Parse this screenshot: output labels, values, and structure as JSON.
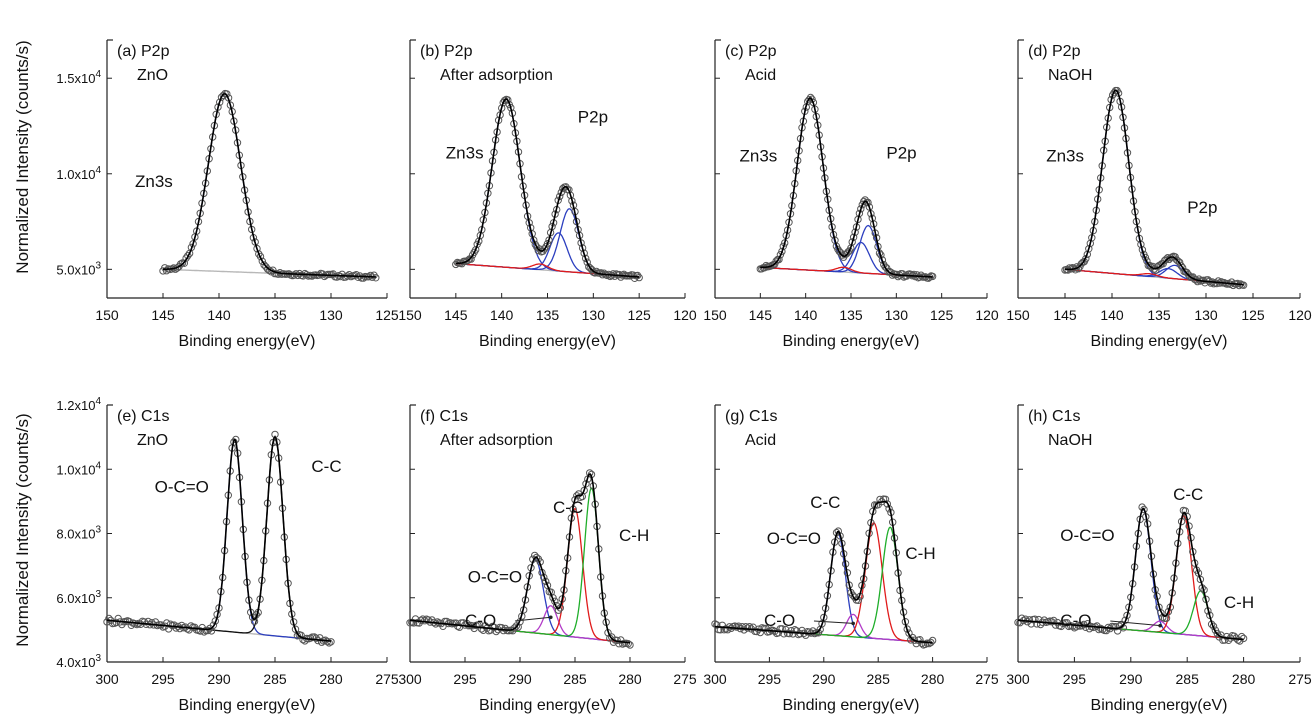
{
  "figure": {
    "ylabel": "Normalized Intensity (counts/s)",
    "xlabel": "Binding energy(eV)",
    "colors": {
      "envelope": "#000000",
      "points": "#555555",
      "background": "#b8b8b8",
      "blue": "#2c3fbf",
      "red": "#e01b1b",
      "green": "#1fae2a",
      "purple": "#b23cc8",
      "label_blue": "#3a4fb8"
    }
  },
  "chart_data": [
    {
      "type": "line",
      "panel": "(a) P2p",
      "sample": "ZnO",
      "region": "P2p",
      "xlim": [
        150,
        125
      ],
      "xticks": [
        150,
        145,
        140,
        135,
        130,
        125
      ],
      "ylim": [
        3500,
        17000
      ],
      "yticks": [
        "5.0x10",
        "1.0x10",
        "1.5x10"
      ],
      "ytick_values": [
        5000,
        10000,
        15000
      ],
      "ytick_exp": "3",
      "ytick_exps": [
        "3",
        "4",
        "4"
      ],
      "xlabel": "Binding energy(eV)",
      "annotations": [
        {
          "text": "Zn3s",
          "color": "#111111"
        }
      ],
      "x_range": [
        145,
        126
      ],
      "background": {
        "start": 5000,
        "end": 4600
      },
      "peaks": [
        {
          "name": "Zn3s",
          "center": 139.5,
          "height": 9300,
          "fwhm": 3.4,
          "color": "#2c3fbf"
        }
      ]
    },
    {
      "type": "line",
      "panel": "(b) P2p",
      "sample": "After adsorption",
      "region": "P2p",
      "xlim": [
        150,
        120
      ],
      "xticks": [
        150,
        145,
        140,
        135,
        130,
        125,
        120
      ],
      "ylim": [
        3500,
        17000
      ],
      "yticks": [],
      "xlabel": "Binding energy(eV)",
      "annotations": [
        {
          "text": "Zn3s",
          "color": "#111111"
        },
        {
          "text": "P2p",
          "color": "#3a4fb8"
        }
      ],
      "x_range": [
        145,
        125
      ],
      "background": {
        "start": 5300,
        "end": 4600
      },
      "peaks": [
        {
          "name": "Zn3s",
          "center": 139.5,
          "height": 8800,
          "fwhm": 3.6,
          "color": "#2c3fbf"
        },
        {
          "name": "P2p 1/2",
          "center": 133.8,
          "height": 2000,
          "fwhm": 2.2,
          "color": "#2c3fbf"
        },
        {
          "name": "P2p 3/2",
          "center": 132.6,
          "height": 3300,
          "fwhm": 2.4,
          "color": "#2c3fbf"
        },
        {
          "name": "tail",
          "center": 135.8,
          "height": 300,
          "fwhm": 2.0,
          "color": "#e01b1b"
        }
      ]
    },
    {
      "type": "line",
      "panel": "(c) P2p",
      "sample": "Acid",
      "region": "P2p",
      "xlim": [
        150,
        120
      ],
      "xticks": [
        150,
        145,
        140,
        135,
        130,
        125,
        120
      ],
      "ylim": [
        3500,
        17000
      ],
      "yticks": [],
      "xlabel": "Binding energy(eV)",
      "annotations": [
        {
          "text": "Zn3s",
          "color": "#111111"
        },
        {
          "text": "P2p",
          "color": "#3a4fb8"
        }
      ],
      "x_range": [
        145,
        126
      ],
      "background": {
        "start": 5100,
        "end": 4600
      },
      "peaks": [
        {
          "name": "Zn3s",
          "center": 139.5,
          "height": 9000,
          "fwhm": 3.4,
          "color": "#2c3fbf"
        },
        {
          "name": "P2p 1/2",
          "center": 133.9,
          "height": 1600,
          "fwhm": 2.2,
          "color": "#2c3fbf"
        },
        {
          "name": "P2p 3/2",
          "center": 133.1,
          "height": 2500,
          "fwhm": 2.2,
          "color": "#2c3fbf"
        },
        {
          "name": "tail",
          "center": 135.8,
          "height": 250,
          "fwhm": 2.0,
          "color": "#e01b1b"
        }
      ]
    },
    {
      "type": "line",
      "panel": "(d) P2p",
      "sample": "NaOH",
      "region": "P2p",
      "xlim": [
        150,
        120
      ],
      "xticks": [
        150,
        145,
        140,
        135,
        130,
        125,
        120
      ],
      "ylim": [
        3500,
        17000
      ],
      "yticks": [],
      "xlabel": "Binding energy(eV)",
      "annotations": [
        {
          "text": "Zn3s",
          "color": "#111111"
        },
        {
          "text": "P2p",
          "color": "#3a4fb8"
        }
      ],
      "x_range": [
        145,
        126
      ],
      "background": {
        "start": 5000,
        "end": 4200
      },
      "peaks": [
        {
          "name": "Zn3s",
          "center": 139.6,
          "height": 9600,
          "fwhm": 3.3,
          "color": "#2c3fbf"
        },
        {
          "name": "P2p 1/2",
          "center": 134.0,
          "height": 500,
          "fwhm": 2.2,
          "color": "#2c3fbf"
        },
        {
          "name": "P2p 3/2",
          "center": 133.3,
          "height": 700,
          "fwhm": 2.2,
          "color": "#2c3fbf"
        },
        {
          "name": "tail",
          "center": 136.0,
          "height": 150,
          "fwhm": 2.0,
          "color": "#e01b1b"
        }
      ]
    },
    {
      "type": "line",
      "panel": "(e) C1s",
      "sample": "ZnO",
      "region": "C1s",
      "xlim": [
        300,
        275
      ],
      "xticks": [
        300,
        295,
        290,
        285,
        280,
        275
      ],
      "ylim": [
        4000,
        12000
      ],
      "yticks": [
        "4.0x10",
        "6.0x10",
        "8.0x10",
        "1.0x10",
        "1.2x10"
      ],
      "ytick_values": [
        4000,
        6000,
        8000,
        10000,
        12000
      ],
      "ytick_exps": [
        "3",
        "3",
        "3",
        "4",
        "4"
      ],
      "xlabel": "Binding energy(eV)",
      "annotations": [
        {
          "text": "O-C=O",
          "color": "#3a4fb8"
        },
        {
          "text": "C-C",
          "color": "#111111"
        }
      ],
      "x_range": [
        300,
        280
      ],
      "background": {
        "start": 5300,
        "end": 4650
      },
      "peaks": [
        {
          "name": "O-C=O",
          "center": 288.6,
          "height": 6000,
          "fwhm": 1.6,
          "color": "#2c3fbf"
        },
        {
          "name": "C-C",
          "center": 285.0,
          "height": 6200,
          "fwhm": 1.7,
          "color": "#111111"
        }
      ]
    },
    {
      "type": "line",
      "panel": "(f) C1s",
      "sample": "After adsorption",
      "region": "C1s",
      "xlim": [
        300,
        275
      ],
      "xticks": [
        300,
        295,
        290,
        285,
        280,
        275
      ],
      "ylim": [
        4000,
        12000
      ],
      "yticks": [],
      "xlabel": "Binding energy(eV)",
      "annotations": [
        {
          "text": "O-C=O",
          "color": "#3a4fb8"
        },
        {
          "text": "C-C",
          "color": "#111111"
        },
        {
          "text": "C-H",
          "color": "#111111"
        },
        {
          "text": "C-O",
          "color": "#111111"
        }
      ],
      "x_range": [
        300,
        280
      ],
      "background": {
        "start": 5300,
        "end": 4600
      },
      "peaks": [
        {
          "name": "O-C=O",
          "center": 288.6,
          "height": 2300,
          "fwhm": 1.7,
          "color": "#2c3fbf"
        },
        {
          "name": "C-O",
          "center": 287.2,
          "height": 900,
          "fwhm": 1.4,
          "color": "#b23cc8"
        },
        {
          "name": "C-C",
          "center": 285.0,
          "height": 4000,
          "fwhm": 1.6,
          "color": "#e01b1b"
        },
        {
          "name": "C-H",
          "center": 283.5,
          "height": 4700,
          "fwhm": 1.5,
          "color": "#1fae2a"
        }
      ]
    },
    {
      "type": "line",
      "panel": "(g) C1s",
      "sample": "Acid",
      "region": "C1s",
      "xlim": [
        300,
        275
      ],
      "xticks": [
        300,
        295,
        290,
        285,
        280,
        275
      ],
      "ylim": [
        4000,
        12000
      ],
      "yticks": [],
      "xlabel": "Binding energy(eV)",
      "annotations": [
        {
          "text": "C-C",
          "color": "#111111"
        },
        {
          "text": "O-C=O",
          "color": "#3a4fb8"
        },
        {
          "text": "C-H",
          "color": "#111111"
        },
        {
          "text": "C-O",
          "color": "#111111"
        }
      ],
      "x_range": [
        300,
        280
      ],
      "background": {
        "start": 5100,
        "end": 4600
      },
      "peaks": [
        {
          "name": "O-C=O",
          "center": 288.7,
          "height": 3200,
          "fwhm": 1.6,
          "color": "#2c3fbf"
        },
        {
          "name": "C-O",
          "center": 287.3,
          "height": 700,
          "fwhm": 1.4,
          "color": "#b23cc8"
        },
        {
          "name": "C-C",
          "center": 285.4,
          "height": 3600,
          "fwhm": 1.8,
          "color": "#e01b1b"
        },
        {
          "name": "C-H",
          "center": 283.9,
          "height": 3500,
          "fwhm": 1.7,
          "color": "#1fae2a"
        }
      ]
    },
    {
      "type": "line",
      "panel": "(h) C1s",
      "sample": "NaOH",
      "region": "C1s",
      "xlim": [
        300,
        275
      ],
      "xticks": [
        300,
        295,
        290,
        285,
        280,
        275
      ],
      "ylim": [
        4000,
        12000
      ],
      "yticks": [],
      "xlabel": "Binding energy(eV)",
      "annotations": [
        {
          "text": "C-C",
          "color": "#111111"
        },
        {
          "text": "O-C=O",
          "color": "#3a4fb8"
        },
        {
          "text": "C-H",
          "color": "#111111"
        },
        {
          "text": "C-O",
          "color": "#111111"
        }
      ],
      "x_range": [
        300,
        280
      ],
      "background": {
        "start": 5300,
        "end": 4700
      },
      "peaks": [
        {
          "name": "O-C=O",
          "center": 288.9,
          "height": 3800,
          "fwhm": 1.6,
          "color": "#2c3fbf"
        },
        {
          "name": "C-O",
          "center": 287.4,
          "height": 350,
          "fwhm": 1.4,
          "color": "#b23cc8"
        },
        {
          "name": "C-C",
          "center": 285.3,
          "height": 3700,
          "fwhm": 1.6,
          "color": "#e01b1b"
        },
        {
          "name": "C-H",
          "center": 283.8,
          "height": 1400,
          "fwhm": 1.5,
          "color": "#1fae2a"
        }
      ]
    }
  ]
}
